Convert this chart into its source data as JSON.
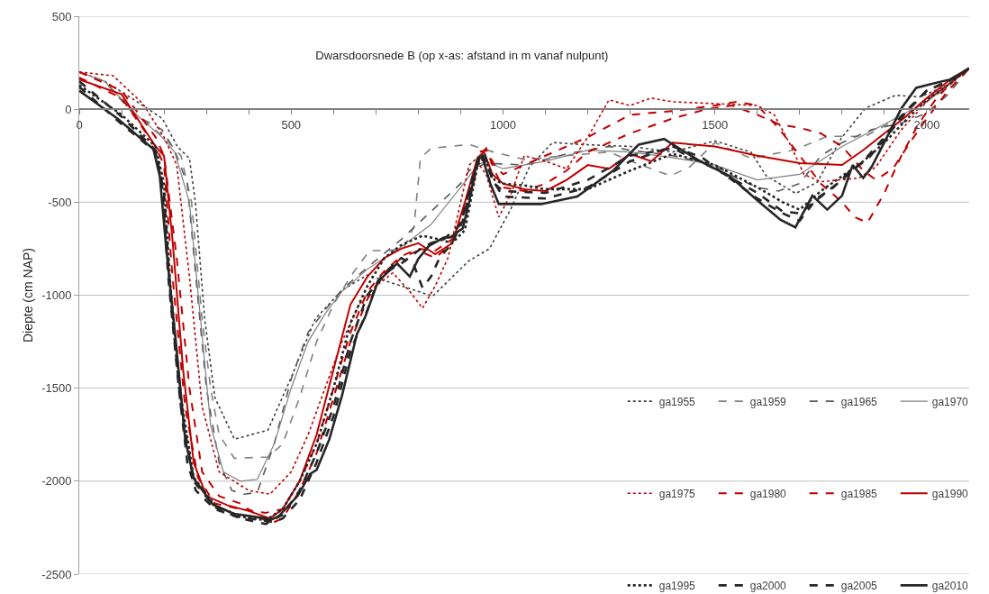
{
  "chart_data": {
    "type": "line",
    "title": "Dwarsdoorsnede B (op x-as: afstand in m vanaf nulpunt)",
    "ylabel": "Diepte (cm NAP)",
    "xlim": [
      0,
      2100
    ],
    "xticks": [
      0,
      {
        "value": 100,
        "label": null
      },
      {
        "value": 200,
        "label": null
      },
      {
        "value": 300,
        "label": null
      },
      {
        "value": 400,
        "label": null
      },
      500,
      {
        "value": 600,
        "label": null
      },
      {
        "value": 700,
        "label": null
      },
      {
        "value": 800,
        "label": null
      },
      {
        "value": 900,
        "label": null
      },
      1000,
      {
        "value": 1100,
        "label": null
      },
      {
        "value": 1200,
        "label": null
      },
      {
        "value": 1300,
        "label": null
      },
      {
        "value": 1400,
        "label": null
      },
      1500,
      {
        "value": 1600,
        "label": null
      },
      {
        "value": 1700,
        "label": null
      },
      {
        "value": 1800,
        "label": null
      },
      {
        "value": 1900,
        "label": null
      },
      2000
    ],
    "ylim": [
      -2500,
      500
    ],
    "yticks": [
      -2500,
      -2000,
      -1500,
      -1000,
      -500,
      0,
      500
    ],
    "grid": "y",
    "legend": "bottom right",
    "marker": "none",
    "series": [
      {
        "name": "ga1955",
        "color": "#404040",
        "line_style": "dotted",
        "x": [
          0,
          60,
          130,
          196,
          232,
          260,
          274,
          296,
          320,
          366,
          445,
          500,
          557,
          621,
          679,
          760,
          834,
          919,
          968,
          1019,
          1062,
          1117,
          1187,
          1300,
          1400,
          1500,
          1585,
          1621,
          1691,
          1742,
          1798,
          1855,
          1926,
          1983,
          2050,
          2100
        ],
        "values": [
          200,
          150,
          50,
          -50,
          -203,
          -264,
          -500,
          -1127,
          -1550,
          -1774,
          -1726,
          -1443,
          -1127,
          -972,
          -892,
          -950,
          -1005,
          -816,
          -750,
          -533,
          -311,
          -179,
          -190,
          -200,
          -230,
          -170,
          -231,
          -358,
          -453,
          -391,
          -156,
          5,
          75,
          66,
          130,
          220
        ]
      },
      {
        "name": "ga1959",
        "color": "#808080",
        "line_style": "dashed",
        "x": [
          0,
          60,
          130,
          200,
          240,
          265,
          290,
          310,
          330,
          366,
          445,
          480,
          520,
          560,
          600,
          640,
          685,
          730,
          765,
          790,
          805,
          830,
          920,
          977,
          1050,
          1150,
          1250,
          1300,
          1395,
          1440,
          1500,
          1585,
          1690,
          1765,
          1855,
          1976,
          2046,
          2100
        ],
        "values": [
          200,
          150,
          -20,
          -150,
          -250,
          -500,
          -1130,
          -1500,
          -1750,
          -1877,
          -1870,
          -1800,
          -1550,
          -1250,
          -1050,
          -900,
          -760,
          -760,
          -750,
          -630,
          -264,
          -210,
          -190,
          -230,
          -270,
          -250,
          -230,
          -278,
          -358,
          -311,
          -180,
          -264,
          -217,
          -146,
          -146,
          5,
          113,
          220
        ]
      },
      {
        "name": "ga1965",
        "color": "#595959",
        "line_style": "dashed",
        "x": [
          0,
          60,
          130,
          195,
          225,
          255,
          275,
          300,
          330,
          360,
          390,
          420,
          460,
          500,
          540,
          580,
          620,
          680,
          760,
          830,
          900,
          920,
          960,
          1050,
          1150,
          1250,
          1300,
          1400,
          1500,
          1550,
          1600,
          1650,
          1700,
          1750,
          1800,
          1870,
          1940,
          2000,
          2050,
          2100
        ],
        "values": [
          200,
          150,
          -30,
          -110,
          -220,
          -400,
          -900,
          -1500,
          -1900,
          -2050,
          -2070,
          -2060,
          -1800,
          -1450,
          -1200,
          -1080,
          -970,
          -850,
          -700,
          -550,
          -400,
          -330,
          -290,
          -300,
          -240,
          -200,
          -220,
          -250,
          -300,
          -370,
          -420,
          -440,
          -400,
          -250,
          -180,
          -110,
          -75,
          -20,
          80,
          220
        ]
      },
      {
        "name": "ga1970",
        "color": "#808080",
        "line_style": "solid",
        "x": [
          0,
          60,
          130,
          195,
          225,
          260,
          285,
          310,
          340,
          380,
          420,
          460,
          500,
          540,
          580,
          620,
          680,
          760,
          830,
          900,
          940,
          960,
          1000,
          1100,
          1200,
          1300,
          1400,
          1500,
          1600,
          1700,
          1800,
          1900,
          2000,
          2100
        ],
        "values": [
          200,
          150,
          -20,
          -150,
          -230,
          -500,
          -1100,
          -1700,
          -1950,
          -2000,
          -1990,
          -1800,
          -1500,
          -1250,
          -1100,
          -980,
          -860,
          -740,
          -620,
          -420,
          -300,
          -280,
          -320,
          -280,
          -220,
          -230,
          -260,
          -300,
          -380,
          -350,
          -200,
          -80,
          40,
          220
        ]
      },
      {
        "name": "ga1975",
        "color": "#c00000",
        "line_style": "dotted",
        "x": [
          0,
          80,
          150,
          200,
          230,
          260,
          290,
          330,
          400,
          450,
          500,
          540,
          580,
          620,
          660,
          700,
          740,
          780,
          810,
          840,
          870,
          900,
          920,
          935,
          960,
          990,
          1020,
          1050,
          1100,
          1150,
          1200,
          1250,
          1300,
          1350,
          1400,
          1500,
          1600,
          1640,
          1680,
          1710,
          1750,
          1840,
          1880,
          1940,
          2010,
          2060,
          2100
        ],
        "values": [
          200,
          180,
          30,
          -150,
          -300,
          -900,
          -1600,
          -1950,
          -2050,
          -2070,
          -1950,
          -1750,
          -1500,
          -1250,
          -1050,
          -950,
          -880,
          -980,
          -1070,
          -950,
          -800,
          -500,
          -300,
          -270,
          -350,
          -580,
          -450,
          -250,
          -280,
          -320,
          -150,
          50,
          20,
          60,
          40,
          30,
          20,
          -30,
          -200,
          -350,
          -390,
          -370,
          -310,
          -110,
          65,
          150,
          220
        ]
      },
      {
        "name": "ga1980",
        "color": "#c00000",
        "line_style": "dashed",
        "x": [
          0,
          100,
          180,
          200,
          230,
          260,
          290,
          330,
          380,
          450,
          480,
          520,
          560,
          600,
          640,
          680,
          720,
          760,
          800,
          840,
          880,
          920,
          945,
          960,
          980,
          1000,
          1100,
          1200,
          1300,
          1400,
          1500,
          1550,
          1600,
          1650,
          1700,
          1750,
          1800,
          1830,
          1860,
          1900,
          1940,
          1980,
          2020,
          2060,
          2100
        ],
        "values": [
          200,
          100,
          -150,
          -250,
          -800,
          -1500,
          -1950,
          -2080,
          -2120,
          -2230,
          -2200,
          -2050,
          -1850,
          -1550,
          -1250,
          -1020,
          -880,
          -800,
          -760,
          -800,
          -720,
          -450,
          -230,
          -220,
          -300,
          -350,
          -250,
          -150,
          -30,
          -10,
          20,
          40,
          20,
          -100,
          -250,
          -400,
          -500,
          -580,
          -610,
          -450,
          -250,
          -80,
          50,
          150,
          220
        ]
      },
      {
        "name": "ga1985",
        "color": "#c00000",
        "line_style": "dashed",
        "x": [
          0,
          100,
          180,
          200,
          220,
          250,
          280,
          320,
          380,
          440,
          480,
          520,
          560,
          600,
          640,
          680,
          720,
          760,
          800,
          840,
          880,
          920,
          945,
          960,
          980,
          1000,
          1050,
          1100,
          1150,
          1200,
          1300,
          1400,
          1480,
          1540,
          1600,
          1650,
          1700,
          1750,
          1800,
          1850,
          1880,
          1920,
          1960,
          2000,
          2050,
          2100
        ],
        "values": [
          170,
          60,
          -200,
          -300,
          -900,
          -1600,
          -1980,
          -2120,
          -2150,
          -2170,
          -2150,
          -2000,
          -1800,
          -1500,
          -1200,
          -980,
          -870,
          -790,
          -750,
          -760,
          -700,
          -500,
          -250,
          -210,
          -330,
          -420,
          -440,
          -400,
          -330,
          -230,
          -130,
          -50,
          0,
          20,
          -30,
          -80,
          -100,
          -130,
          -200,
          -330,
          -380,
          -320,
          -180,
          -50,
          100,
          220
        ]
      },
      {
        "name": "ga1990",
        "color": "#c00000",
        "line_style": "solid",
        "x": [
          0,
          100,
          180,
          200,
          220,
          245,
          270,
          300,
          350,
          400,
          450,
          480,
          520,
          560,
          600,
          640,
          680,
          720,
          760,
          800,
          840,
          880,
          910,
          940,
          955,
          975,
          1000,
          1050,
          1100,
          1150,
          1200,
          1250,
          1300,
          1350,
          1400,
          1500,
          1600,
          1700,
          1800,
          1850,
          1900,
          1950,
          2000,
          2050,
          2100
        ],
        "values": [
          160,
          80,
          -200,
          -250,
          -700,
          -1400,
          -1900,
          -2080,
          -2130,
          -2160,
          -2200,
          -2150,
          -2000,
          -1750,
          -1400,
          -1050,
          -900,
          -800,
          -750,
          -720,
          -780,
          -720,
          -500,
          -260,
          -230,
          -350,
          -400,
          -430,
          -440,
          -380,
          -300,
          -320,
          -240,
          -280,
          -180,
          -200,
          -250,
          -290,
          -300,
          -220,
          -130,
          -40,
          60,
          150,
          220
        ]
      },
      {
        "name": "ga1995",
        "color": "#262626",
        "line_style": "dotted",
        "x": [
          0,
          100,
          180,
          200,
          215,
          240,
          270,
          320,
          380,
          440,
          480,
          520,
          560,
          600,
          640,
          680,
          720,
          760,
          810,
          850,
          880,
          910,
          940,
          955,
          980,
          1000,
          1050,
          1100,
          1200,
          1300,
          1400,
          1500,
          1600,
          1660,
          1700,
          1750,
          1800,
          1850,
          1900,
          1950,
          2000,
          2050,
          2100
        ],
        "values": [
          130,
          -30,
          -200,
          -400,
          -950,
          -1550,
          -1980,
          -2130,
          -2190,
          -2210,
          -2150,
          -2000,
          -1800,
          -1500,
          -1150,
          -950,
          -800,
          -730,
          -680,
          -700,
          -720,
          -650,
          -300,
          -260,
          -380,
          -400,
          -410,
          -430,
          -430,
          -330,
          -240,
          -300,
          -420,
          -500,
          -540,
          -440,
          -360,
          -280,
          -180,
          -60,
          50,
          130,
          220
        ]
      },
      {
        "name": "ga2000",
        "color": "#262626",
        "line_style": "dashed",
        "x": [
          0,
          100,
          180,
          200,
          215,
          240,
          270,
          320,
          380,
          440,
          480,
          520,
          560,
          600,
          640,
          680,
          720,
          760,
          800,
          830,
          860,
          900,
          930,
          950,
          980,
          1000,
          1100,
          1200,
          1300,
          1400,
          1500,
          1600,
          1660,
          1700,
          1750,
          1800,
          1850,
          1900,
          1950,
          2000,
          2050,
          2100
        ],
        "values": [
          150,
          -40,
          -220,
          -450,
          -1000,
          -1600,
          -2000,
          -2140,
          -2200,
          -2230,
          -2180,
          -2050,
          -1850,
          -1600,
          -1250,
          -1000,
          -880,
          -830,
          -760,
          -720,
          -700,
          -620,
          -350,
          -240,
          -400,
          -440,
          -450,
          -380,
          -250,
          -210,
          -320,
          -450,
          -550,
          -560,
          -470,
          -380,
          -280,
          -150,
          -10,
          100,
          150,
          220
        ]
      },
      {
        "name": "ga2005",
        "color": "#262626",
        "line_style": "dashed",
        "x": [
          0,
          100,
          180,
          195,
          210,
          235,
          255,
          275,
          320,
          370,
          430,
          460,
          480,
          520,
          560,
          600,
          640,
          680,
          700,
          730,
          760,
          790,
          810,
          830,
          850,
          880,
          905,
          925,
          945,
          955,
          975,
          1000,
          1100,
          1200,
          1300,
          1400,
          1470,
          1540,
          1600,
          1660,
          1700,
          1740,
          1780,
          1820,
          1860,
          1900,
          1950,
          2000,
          2050,
          2100
        ],
        "values": [
          120,
          -80,
          -230,
          -400,
          -900,
          -1500,
          -1900,
          -2050,
          -2150,
          -2190,
          -2210,
          -2220,
          -2200,
          -2100,
          -1900,
          -1650,
          -1300,
          -1080,
          -950,
          -860,
          -800,
          -840,
          -960,
          -900,
          -800,
          -720,
          -600,
          -400,
          -260,
          -230,
          -380,
          -470,
          -480,
          -420,
          -280,
          -200,
          -260,
          -380,
          -480,
          -560,
          -600,
          -480,
          -420,
          -330,
          -270,
          -160,
          -20,
          100,
          150,
          220
        ]
      },
      {
        "name": "ga2010",
        "color": "#262626",
        "line_style": "solid",
        "x": [
          0,
          90,
          175,
          190,
          205,
          230,
          250,
          270,
          315,
          365,
          440,
          450,
          470,
          515,
          545,
          560,
          590,
          620,
          655,
          675,
          690,
          705,
          750,
          780,
          800,
          825,
          860,
          875,
          905,
          920,
          940,
          951,
          970,
          990,
          1090,
          1175,
          1260,
          1320,
          1380,
          1465,
          1535,
          1605,
          1655,
          1690,
          1730,
          1765,
          1800,
          1825,
          1850,
          1870,
          1905,
          1940,
          1975,
          2010,
          2055,
          2100
        ],
        "values": [
          100,
          -50,
          -215,
          -360,
          -740,
          -1300,
          -1775,
          -1985,
          -2125,
          -2175,
          -2200,
          -2210,
          -2190,
          -2080,
          -1960,
          -1940,
          -1775,
          -1540,
          -1210,
          -1115,
          -1020,
          -925,
          -830,
          -900,
          -805,
          -735,
          -690,
          -690,
          -640,
          -500,
          -265,
          -255,
          -400,
          -510,
          -510,
          -470,
          -330,
          -190,
          -160,
          -280,
          -360,
          -500,
          -595,
          -635,
          -465,
          -540,
          -465,
          -300,
          -370,
          -310,
          -155,
          5,
          115,
          135,
          160,
          220
        ]
      }
    ]
  }
}
